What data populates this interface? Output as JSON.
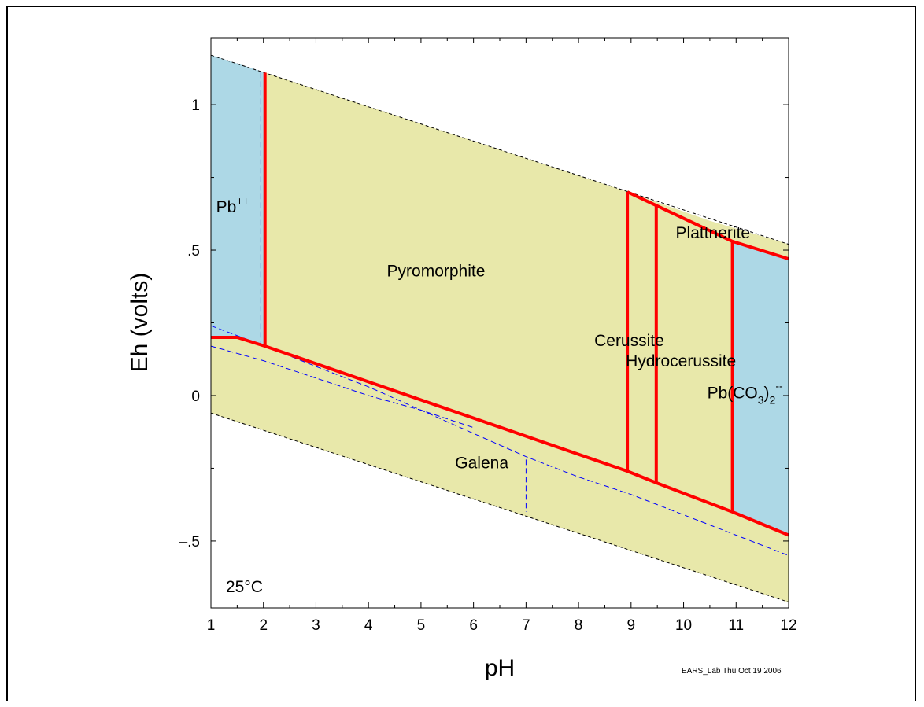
{
  "chart_data": {
    "type": "area",
    "title": "",
    "xlabel": "pH",
    "ylabel": "Eh (volts)",
    "xlim": [
      1,
      12
    ],
    "ylim": [
      -0.73,
      1.23
    ],
    "xticks": [
      "1",
      "2",
      "3",
      "4",
      "5",
      "6",
      "7",
      "8",
      "9",
      "10",
      "11",
      "12"
    ],
    "yticks": [
      {
        "value": 1.0,
        "label": "1"
      },
      {
        "value": 0.5,
        "label": ".5"
      },
      {
        "value": 0.0,
        "label": "0"
      },
      {
        "value": -0.5,
        "label": "–.5"
      }
    ],
    "grid": false,
    "temperature_label": "25°C",
    "footer_note": "EARS_Lab Thu Oct 19 2006",
    "colors": {
      "aqueous": "#add8e6",
      "mineral": "#e8e8aa",
      "boundary": "#ff0000",
      "water_limit": "#000000",
      "dashed_aqueous": "#0000ff"
    },
    "water_upper": [
      [
        1,
        1.17
      ],
      [
        12,
        0.52
      ]
    ],
    "water_lower": [
      [
        1,
        -0.06
      ],
      [
        12,
        -0.71
      ]
    ],
    "regions": [
      {
        "name": "Pb++",
        "fill": "aqueous",
        "polygon": [
          [
            1,
            1.17
          ],
          [
            2.03,
            1.11
          ],
          [
            2.03,
            0.17
          ],
          [
            1.5,
            0.2
          ],
          [
            1,
            0.2
          ]
        ]
      },
      {
        "name": "Pyromorphite",
        "fill": "mineral",
        "polygon": [
          [
            2.03,
            1.11
          ],
          [
            8.93,
            0.7
          ],
          [
            8.93,
            -0.26
          ],
          [
            2.03,
            0.17
          ]
        ]
      },
      {
        "name": "Cerussite",
        "fill": "mineral",
        "polygon": [
          [
            8.93,
            0.7
          ],
          [
            9.48,
            0.65
          ],
          [
            9.48,
            -0.3
          ],
          [
            8.93,
            -0.26
          ]
        ]
      },
      {
        "name": "Hydrocerussite",
        "fill": "mineral",
        "polygon": [
          [
            9.48,
            0.65
          ],
          [
            10.93,
            0.53
          ],
          [
            10.93,
            -0.4
          ],
          [
            9.48,
            -0.3
          ]
        ]
      },
      {
        "name": "Plattnerite",
        "fill": "mineral",
        "polygon": [
          [
            8.93,
            0.7
          ],
          [
            10.93,
            0.53
          ],
          [
            12,
            0.47
          ],
          [
            12,
            0.52
          ],
          [
            10.5,
            0.6
          ]
        ]
      },
      {
        "name": "Pb(CO3)2--",
        "fill": "aqueous",
        "polygon": [
          [
            10.93,
            0.53
          ],
          [
            12,
            0.47
          ],
          [
            12,
            -0.48
          ],
          [
            10.93,
            -0.4
          ]
        ]
      },
      {
        "name": "Galena",
        "fill": "mineral",
        "polygon": [
          [
            1,
            0.2
          ],
          [
            1.5,
            0.2
          ],
          [
            2.03,
            0.17
          ],
          [
            8.93,
            -0.26
          ],
          [
            9.48,
            -0.3
          ],
          [
            10.93,
            -0.4
          ],
          [
            12,
            -0.48
          ],
          [
            12,
            -0.71
          ],
          [
            1,
            -0.06
          ]
        ]
      }
    ],
    "boundaries": [
      [
        [
          1,
          0.2
        ],
        [
          1.5,
          0.2
        ],
        [
          2.03,
          0.17
        ],
        [
          8.93,
          -0.26
        ],
        [
          9.48,
          -0.3
        ],
        [
          10.93,
          -0.4
        ],
        [
          12,
          -0.48
        ]
      ],
      [
        [
          2.03,
          1.11
        ],
        [
          2.03,
          0.17
        ]
      ],
      [
        [
          8.93,
          0.7
        ],
        [
          8.93,
          -0.26
        ]
      ],
      [
        [
          9.48,
          0.65
        ],
        [
          9.48,
          -0.3
        ]
      ],
      [
        [
          10.93,
          0.53
        ],
        [
          10.93,
          -0.4
        ]
      ],
      [
        [
          8.93,
          0.7
        ],
        [
          10.93,
          0.53
        ],
        [
          12,
          0.47
        ]
      ]
    ],
    "dashed_lines": [
      [
        [
          1,
          0.24
        ],
        [
          2.03,
          0.17
        ],
        [
          3,
          0.1
        ],
        [
          4,
          0.03
        ],
        [
          5,
          -0.05
        ],
        [
          6,
          -0.13
        ],
        [
          7,
          -0.21
        ],
        [
          8,
          -0.28
        ],
        [
          9,
          -0.34
        ],
        [
          10,
          -0.41
        ],
        [
          11,
          -0.48
        ],
        [
          12,
          -0.55
        ]
      ],
      [
        [
          1,
          0.17
        ],
        [
          2,
          0.12
        ],
        [
          3,
          0.06
        ],
        [
          4,
          0.0
        ],
        [
          5,
          -0.05
        ],
        [
          6,
          -0.11
        ]
      ],
      [
        [
          1.95,
          1.11
        ],
        [
          1.95,
          0.17
        ]
      ],
      [
        [
          7,
          -0.22
        ],
        [
          7,
          -0.4
        ]
      ]
    ],
    "labels": [
      {
        "text": "Pb",
        "sup": "++",
        "x": 1.1,
        "y": 0.63
      },
      {
        "text": "Pyromorphite",
        "x": 4.35,
        "y": 0.41
      },
      {
        "text": "Plattnerite",
        "x": 9.85,
        "y": 0.54
      },
      {
        "text": "Cerussite",
        "x": 8.3,
        "y": 0.17
      },
      {
        "text": "Hydrocerussite",
        "x": 8.9,
        "y": 0.1
      },
      {
        "text": "Galena",
        "x": 5.65,
        "y": -0.25
      }
    ],
    "complex_label": {
      "base": "Pb(CO",
      "sub1": "3",
      "close": ")",
      "sub2": "2",
      "sup": "--",
      "x": 10.45,
      "y": -0.01
    }
  }
}
